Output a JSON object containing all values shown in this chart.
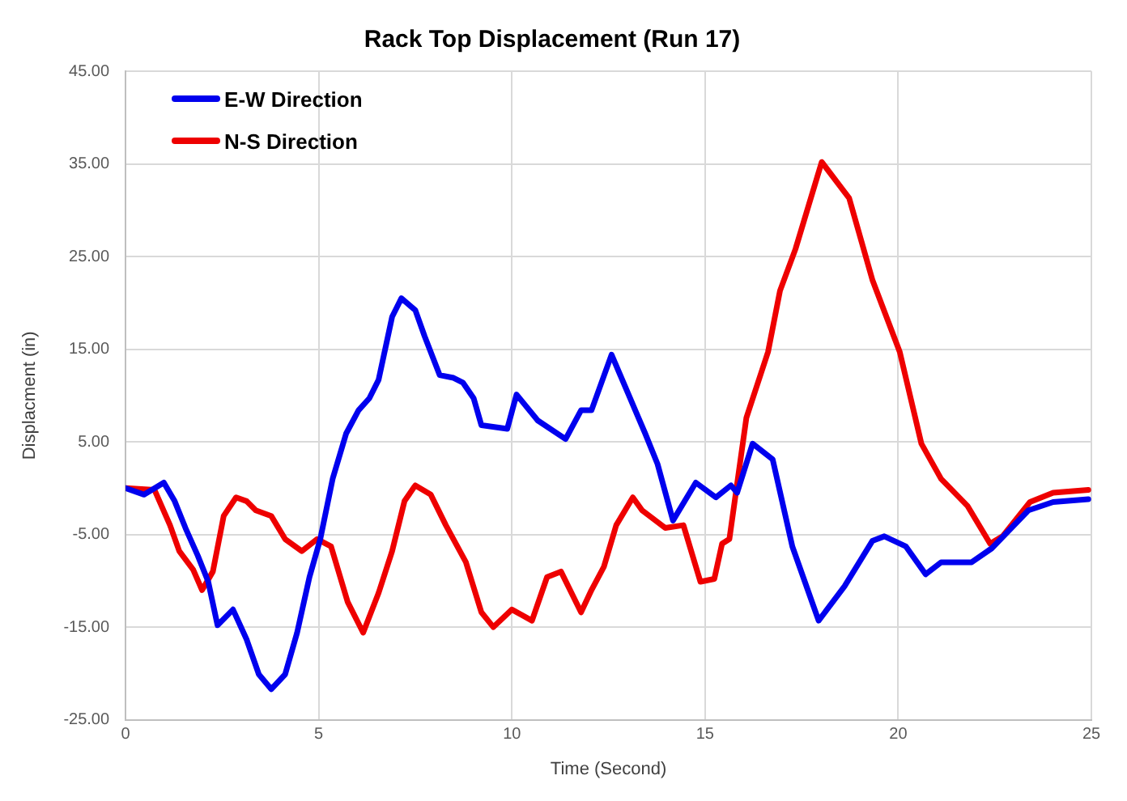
{
  "chart_data": {
    "type": "line",
    "title": "Rack Top Displacement (Run 17)",
    "xlabel": "Time (Second)",
    "ylabel": "Displacment (in)",
    "xlim": [
      0,
      25
    ],
    "xticks": [
      0,
      5,
      10,
      15,
      20,
      25
    ],
    "ylim": [
      -25,
      45
    ],
    "yticks": [
      {
        "value": -25,
        "label": "-25.00"
      },
      {
        "value": -15,
        "label": "-15.00"
      },
      {
        "value": -5,
        "label": "-5.00"
      },
      {
        "value": 5,
        "label": "5.00"
      },
      {
        "value": 15,
        "label": "15.00"
      },
      {
        "value": 25,
        "label": "25.00"
      },
      {
        "value": 35,
        "label": "35.00"
      },
      {
        "value": 45,
        "label": "45.00"
      }
    ],
    "grid": true,
    "legend": "top left",
    "marker": "none",
    "line_style": "solid",
    "series": [
      {
        "name": "E-W Direction",
        "color": "#0000ee",
        "x": [
          0,
          0.48,
          0.99,
          1.27,
          1.55,
          1.87,
          2.14,
          2.38,
          2.78,
          3.13,
          3.45,
          3.77,
          4.13,
          4.44,
          4.76,
          5.04,
          5.36,
          5.71,
          6.03,
          6.31,
          6.55,
          6.9,
          7.14,
          7.5,
          7.74,
          8.13,
          8.49,
          8.73,
          9.01,
          9.21,
          9.88,
          10.12,
          10.67,
          11.39,
          11.79,
          12.06,
          12.58,
          13.06,
          13.45,
          13.77,
          14.17,
          14.76,
          15.28,
          15.67,
          15.83,
          16.23,
          16.75,
          17.26,
          17.94,
          18.61,
          19.33,
          19.64,
          20.2,
          20.71,
          21.11,
          21.9,
          22.42,
          23.37,
          24.01,
          24.92
        ],
        "values": [
          0,
          -0.7,
          0.6,
          -1.4,
          -4.3,
          -7.3,
          -10.1,
          -14.8,
          -13.1,
          -16.3,
          -20.1,
          -21.7,
          -20.1,
          -15.6,
          -9.6,
          -5.5,
          1,
          5.9,
          8.4,
          9.7,
          11.7,
          18.5,
          20.5,
          19.2,
          16.4,
          12.2,
          11.9,
          11.4,
          9.7,
          6.8,
          6.4,
          10.1,
          7.3,
          5.3,
          8.4,
          8.4,
          14.4,
          9.7,
          5.9,
          2.6,
          -3.5,
          0.6,
          -1,
          0.3,
          -0.5,
          4.8,
          3.1,
          -6.3,
          -14.3,
          -10.6,
          -5.7,
          -5.2,
          -6.3,
          -9.3,
          -8,
          -8,
          -6.5,
          -2.4,
          -1.5,
          -1.2
        ]
      },
      {
        "name": "N-S Direction",
        "color": "#ee0000",
        "x": [
          0,
          0.75,
          1.15,
          1.39,
          1.75,
          1.98,
          2.26,
          2.54,
          2.86,
          3.13,
          3.37,
          3.77,
          4.13,
          4.56,
          4.96,
          5.32,
          5.75,
          6.15,
          6.55,
          6.9,
          7.22,
          7.5,
          7.9,
          8.29,
          8.81,
          9.21,
          9.52,
          10,
          10.52,
          10.91,
          11.27,
          11.79,
          12.06,
          12.38,
          12.7,
          13.13,
          13.37,
          13.97,
          14.44,
          14.88,
          15.24,
          15.44,
          15.63,
          16.07,
          16.63,
          16.94,
          17.34,
          18.02,
          18.73,
          19.33,
          20.04,
          20.6,
          21.11,
          21.79,
          22.38,
          22.7,
          23.41,
          24.01,
          24.92
        ],
        "values": [
          0,
          -0.2,
          -4,
          -6.8,
          -8.8,
          -11,
          -9,
          -3,
          -1,
          -1.4,
          -2.4,
          -3,
          -5.5,
          -6.8,
          -5.5,
          -6.3,
          -12.3,
          -15.6,
          -11.3,
          -6.8,
          -1.4,
          0.3,
          -0.7,
          -4,
          -8,
          -13.4,
          -15,
          -13.1,
          -14.3,
          -9.6,
          -9,
          -13.4,
          -11,
          -8.5,
          -4,
          -1,
          -2.4,
          -4.3,
          -4,
          -10.1,
          -9.8,
          -6,
          -5.5,
          7.6,
          14.7,
          21.3,
          25.8,
          35.2,
          31.3,
          22.5,
          14.7,
          4.8,
          1,
          -1.9,
          -6,
          -5.2,
          -1.5,
          -0.5,
          -0.2
        ]
      }
    ]
  }
}
